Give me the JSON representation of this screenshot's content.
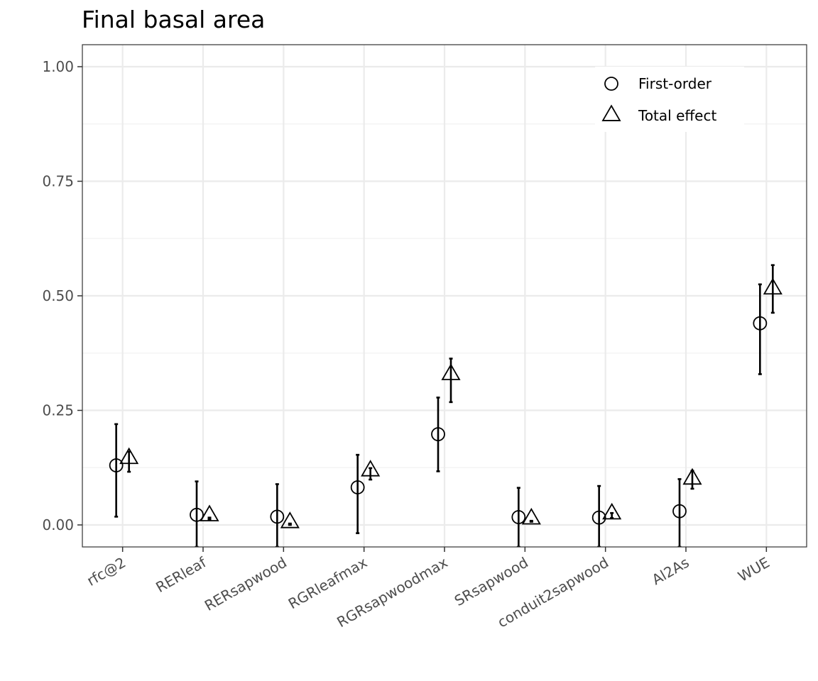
{
  "chart_data": {
    "type": "scatter",
    "title": "Final basal area",
    "xlabel": "",
    "ylabel": "",
    "ylim": [
      -0.048,
      1.048
    ],
    "yticks": [
      "0.00",
      "0.25",
      "0.50",
      "0.75",
      "1.00"
    ],
    "ytick_values": [
      0.0,
      0.25,
      0.5,
      0.75,
      1.0
    ],
    "grid": true,
    "legend_position": "top-right",
    "categories": [
      "rfc@2",
      "RERleaf",
      "RERsapwood",
      "RGRleafmax",
      "RGRsapwoodmax",
      "SRsapwood",
      "conduit2sapwood",
      "Al2As",
      "WUE"
    ],
    "series": [
      {
        "name": "First-order",
        "marker": "circle",
        "values": [
          0.13,
          0.022,
          0.018,
          0.082,
          0.198,
          0.017,
          0.016,
          0.03,
          0.44
        ],
        "lower": [
          0.018,
          -0.048,
          -0.048,
          -0.018,
          0.117,
          -0.048,
          -0.048,
          -0.048,
          0.329
        ],
        "upper": [
          0.22,
          0.095,
          0.089,
          0.153,
          0.278,
          0.081,
          0.085,
          0.1,
          0.525
        ]
      },
      {
        "name": "Total effect",
        "marker": "triangle",
        "values": [
          0.145,
          0.02,
          0.005,
          0.118,
          0.328,
          0.013,
          0.024,
          0.1,
          0.515
        ],
        "lower": [
          0.116,
          0.012,
          0.0,
          0.099,
          0.268,
          0.007,
          0.015,
          0.079,
          0.463
        ],
        "upper": [
          0.16,
          0.016,
          0.003,
          0.124,
          0.363,
          0.009,
          0.026,
          0.118,
          0.567
        ]
      }
    ]
  }
}
